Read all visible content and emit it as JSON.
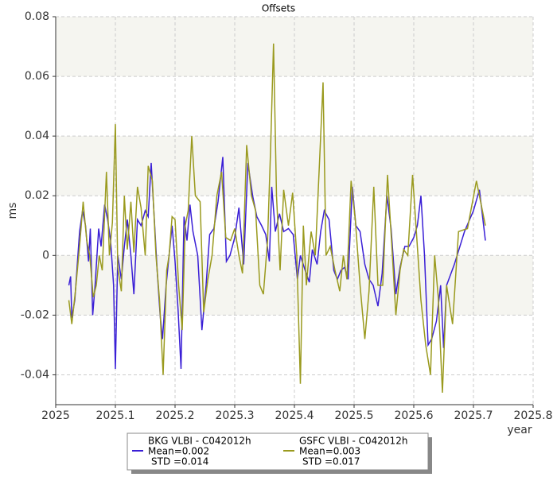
{
  "chart_data": {
    "type": "line",
    "title": "Offsets",
    "xlabel": "year",
    "ylabel": "ms",
    "xlim": [
      2025,
      2025.8
    ],
    "xticks": [
      2025,
      2025.1,
      2025.2,
      2025.3,
      2025.4,
      2025.5,
      2025.6,
      2025.7,
      2025.8
    ],
    "ylim": [
      -0.05,
      0.08
    ],
    "yticks": [
      -0.04,
      -0.02,
      0,
      0.02,
      0.04,
      0.06,
      0.08
    ],
    "grid": true,
    "legend": "bottom",
    "series": [
      {
        "name": "BKG VLBI - C042012h",
        "mean_label": "Mean=0.002",
        "std_label": "STD =0.014",
        "color": "#3a1fd6",
        "x": [
          2025.022,
          2025.025,
          2025.027,
          2025.032,
          2025.04,
          2025.045,
          2025.05,
          2025.055,
          2025.058,
          2025.062,
          2025.066,
          2025.072,
          2025.076,
          2025.082,
          2025.087,
          2025.092,
          2025.097,
          2025.1,
          2025.104,
          2025.11,
          2025.115,
          2025.12,
          2025.126,
          2025.131,
          2025.137,
          2025.143,
          2025.15,
          2025.155,
          2025.16,
          2025.165,
          2025.17,
          2025.175,
          2025.179,
          2025.185,
          2025.19,
          2025.195,
          2025.2,
          2025.205,
          2025.21,
          2025.215,
          2025.22,
          2025.225,
          2025.23,
          2025.238,
          2025.245,
          2025.252,
          2025.258,
          2025.265,
          2025.272,
          2025.28,
          2025.286,
          2025.292,
          2025.3,
          2025.307,
          2025.315,
          2025.322,
          2025.33,
          2025.337,
          2025.345,
          2025.352,
          2025.358,
          2025.362,
          2025.368,
          2025.375,
          2025.382,
          2025.39,
          2025.398,
          2025.405,
          2025.41,
          2025.418,
          2025.425,
          2025.43,
          2025.438,
          2025.444,
          2025.45,
          2025.458,
          2025.466,
          2025.472,
          2025.478,
          2025.484,
          2025.49,
          2025.497,
          2025.503,
          2025.51,
          2025.518,
          2025.525,
          2025.532,
          2025.54,
          2025.547,
          2025.555,
          2025.562,
          2025.57,
          2025.577,
          2025.585,
          2025.592,
          2025.6,
          2025.606,
          2025.612,
          2025.618,
          2025.624,
          2025.63,
          2025.638,
          2025.645,
          2025.65,
          2025.655,
          2025.668,
          2025.685,
          2025.7,
          2025.71,
          2025.72
        ],
        "values": [
          -0.01,
          -0.007,
          -0.021,
          -0.015,
          0.008,
          0.015,
          0.01,
          -0.002,
          0.009,
          -0.02,
          -0.01,
          0.009,
          0.003,
          0.017,
          0.012,
          0.005,
          -0.01,
          -0.038,
          0.0,
          -0.008,
          0.003,
          0.012,
          0.0,
          -0.013,
          0.012,
          0.01,
          0.015,
          0.013,
          0.031,
          0.013,
          -0.005,
          -0.02,
          -0.028,
          -0.01,
          0.0,
          0.01,
          -0.002,
          -0.018,
          -0.038,
          0.013,
          0.005,
          0.017,
          0.008,
          0.0,
          -0.025,
          -0.01,
          0.007,
          0.009,
          0.018,
          0.033,
          -0.002,
          0.0,
          0.006,
          0.016,
          -0.003,
          0.031,
          0.02,
          0.013,
          0.01,
          0.007,
          -0.002,
          0.023,
          0.008,
          0.014,
          0.008,
          0.009,
          0.007,
          -0.008,
          0.0,
          -0.005,
          -0.009,
          0.002,
          -0.003,
          0.008,
          0.015,
          0.012,
          -0.005,
          -0.008,
          -0.005,
          -0.004,
          -0.008,
          0.023,
          0.01,
          0.008,
          -0.003,
          -0.008,
          -0.01,
          -0.017,
          -0.006,
          0.02,
          0.009,
          -0.013,
          -0.004,
          0.003,
          0.003,
          0.006,
          0.01,
          0.02,
          0.0,
          -0.03,
          -0.028,
          -0.022,
          -0.01,
          -0.031,
          -0.01,
          -0.003,
          0.008,
          0.015,
          0.022,
          0.005
        ]
      },
      {
        "name": "GSFC VLBI - C042012h",
        "mean_label": "Mean=0.003",
        "std_label": "STD =0.017",
        "color": "#9a9a1e",
        "x": [
          2025.022,
          2025.027,
          2025.033,
          2025.04,
          2025.046,
          2025.052,
          2025.057,
          2025.063,
          2025.068,
          2025.073,
          2025.078,
          2025.085,
          2025.09,
          2025.095,
          2025.1,
          2025.104,
          2025.11,
          2025.115,
          2025.12,
          2025.126,
          2025.131,
          2025.137,
          2025.143,
          2025.15,
          2025.155,
          2025.162,
          2025.168,
          2025.174,
          2025.18,
          2025.186,
          2025.19,
          2025.195,
          2025.2,
          2025.206,
          2025.212,
          2025.217,
          2025.222,
          2025.228,
          2025.234,
          2025.242,
          2025.248,
          2025.255,
          2025.262,
          2025.27,
          2025.278,
          2025.285,
          2025.293,
          2025.3,
          2025.307,
          2025.313,
          2025.32,
          2025.328,
          2025.335,
          2025.342,
          2025.348,
          2025.355,
          2025.36,
          2025.365,
          2025.37,
          2025.376,
          2025.382,
          2025.39,
          2025.397,
          2025.404,
          2025.41,
          2025.415,
          2025.42,
          2025.428,
          2025.435,
          2025.442,
          2025.448,
          2025.453,
          2025.46,
          2025.468,
          2025.476,
          2025.482,
          2025.488,
          2025.495,
          2025.502,
          2025.51,
          2025.518,
          2025.525,
          2025.533,
          2025.54,
          2025.548,
          2025.556,
          2025.563,
          2025.57,
          2025.577,
          2025.583,
          2025.59,
          2025.598,
          2025.605,
          2025.612,
          2025.62,
          2025.628,
          2025.635,
          2025.641,
          2025.648,
          2025.655,
          2025.665,
          2025.675,
          2025.69,
          2025.705,
          2025.72
        ],
        "values": [
          -0.015,
          -0.023,
          -0.012,
          0.003,
          0.018,
          0.005,
          0.0,
          -0.014,
          -0.01,
          0.0,
          -0.005,
          0.028,
          0.0,
          0.011,
          0.044,
          -0.004,
          -0.012,
          0.02,
          0.002,
          0.018,
          0.001,
          0.023,
          0.016,
          0.0,
          0.03,
          0.025,
          0.0,
          -0.015,
          -0.04,
          -0.005,
          0.0,
          0.013,
          0.012,
          -0.01,
          -0.025,
          0.01,
          0.015,
          0.04,
          0.02,
          0.018,
          -0.019,
          -0.008,
          0.0,
          0.02,
          0.028,
          0.006,
          0.005,
          0.009,
          0.0,
          -0.006,
          0.037,
          0.02,
          0.015,
          -0.01,
          -0.013,
          0.005,
          0.035,
          0.071,
          0.02,
          -0.005,
          0.022,
          0.01,
          0.021,
          0.0,
          -0.043,
          0.01,
          -0.01,
          0.008,
          0.0,
          0.031,
          0.058,
          0.0,
          0.003,
          -0.005,
          -0.012,
          0.0,
          -0.008,
          0.025,
          0.012,
          -0.01,
          -0.028,
          -0.012,
          0.023,
          -0.01,
          -0.01,
          0.027,
          0.004,
          -0.02,
          -0.005,
          0.002,
          0.0,
          0.027,
          0.006,
          -0.015,
          -0.03,
          -0.04,
          0.0,
          -0.014,
          -0.046,
          -0.01,
          -0.023,
          0.008,
          0.009,
          0.025,
          0.01
        ]
      }
    ]
  }
}
